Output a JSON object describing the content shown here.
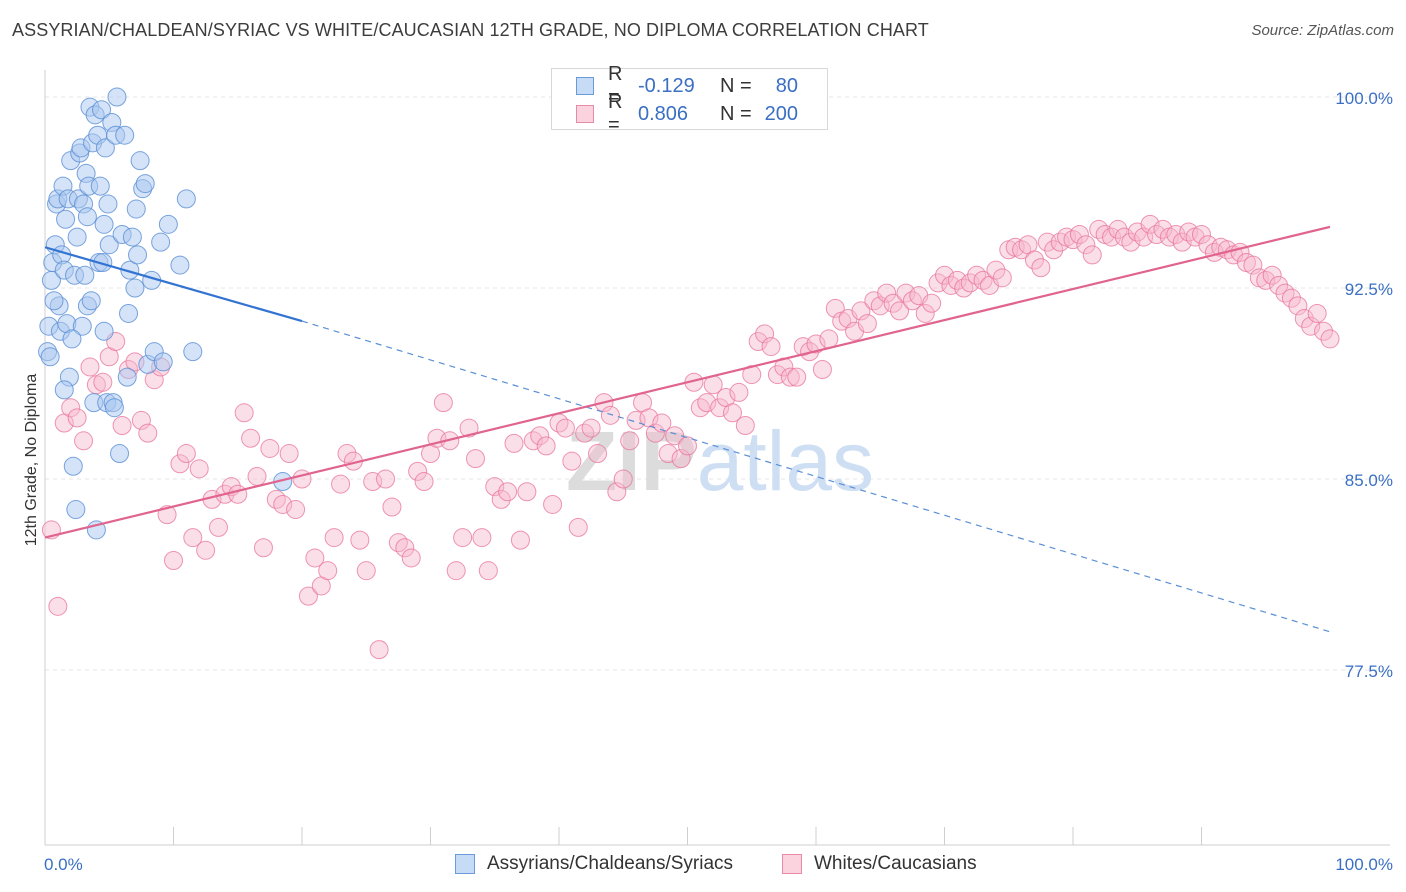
{
  "header": {
    "title": "ASSYRIAN/CHALDEAN/SYRIAC VS WHITE/CAUCASIAN 12TH GRADE, NO DIPLOMA CORRELATION CHART",
    "source": "Source: ZipAtlas.com"
  },
  "watermark": "ZIPatlas",
  "legend": {
    "rows": [
      {
        "r_label": "R =",
        "r_value": "-0.129",
        "n_label": "N =",
        "n_value": "80",
        "color": "#a9c8f0",
        "border": "#6a9ad8"
      },
      {
        "r_label": "R =",
        "r_value": "0.806",
        "n_label": "N =",
        "n_value": "200",
        "color": "#f7b9cb",
        "border": "#e68aa6"
      }
    ],
    "bottom": [
      {
        "label": "Assyrians/Chaldeans/Syriacs",
        "color": "#a9c8f0",
        "border": "#6a9ad8"
      },
      {
        "label": "Whites/Caucasians",
        "color": "#f7b9cb",
        "border": "#e68aa6"
      }
    ]
  },
  "chart_data": {
    "type": "scatter",
    "ylabel": "12th Grade, No Diploma",
    "xlabel": "",
    "xlim": [
      0,
      100
    ],
    "ylim": [
      70.0,
      101.5
    ],
    "x_tick_labels": [
      "0.0%",
      "100.0%"
    ],
    "y_ticks": [
      100.0,
      92.5,
      85.0,
      77.5
    ],
    "y_tick_labels": [
      "100.0%",
      "92.5%",
      "85.0%",
      "77.5%"
    ],
    "grid": true,
    "colors": {
      "blue": "#5a8fd6",
      "blue_fill": "#a9c8f0",
      "pink": "#e8739a",
      "pink_fill": "#f7b9cb",
      "tick_label": "#3a6fc4"
    },
    "series": [
      {
        "name": "Assyrians/Chaldeans/Syriacs",
        "trend": {
          "x": [
            0,
            20
          ],
          "y": [
            94.1,
            91.2
          ],
          "dashed_to": [
            100,
            79.0
          ]
        },
        "points": [
          [
            0.2,
            90.0
          ],
          [
            0.3,
            91.0
          ],
          [
            0.5,
            92.8
          ],
          [
            0.6,
            93.5
          ],
          [
            0.8,
            94.2
          ],
          [
            0.9,
            95.8
          ],
          [
            1.0,
            96.0
          ],
          [
            1.1,
            91.8
          ],
          [
            1.2,
            90.8
          ],
          [
            1.3,
            93.8
          ],
          [
            1.4,
            96.5
          ],
          [
            1.5,
            93.2
          ],
          [
            1.6,
            95.2
          ],
          [
            1.7,
            91.1
          ],
          [
            1.8,
            96.0
          ],
          [
            1.9,
            89.0
          ],
          [
            2.0,
            97.5
          ],
          [
            2.2,
            85.5
          ],
          [
            2.3,
            93.0
          ],
          [
            2.4,
            83.8
          ],
          [
            2.5,
            94.5
          ],
          [
            2.6,
            96.0
          ],
          [
            2.7,
            97.8
          ],
          [
            2.8,
            98.0
          ],
          [
            2.9,
            91.0
          ],
          [
            3.0,
            95.8
          ],
          [
            3.1,
            93.0
          ],
          [
            3.2,
            97.0
          ],
          [
            3.3,
            91.8
          ],
          [
            3.4,
            96.5
          ],
          [
            3.5,
            99.6
          ],
          [
            3.6,
            92.0
          ],
          [
            3.7,
            98.2
          ],
          [
            3.8,
            88.0
          ],
          [
            3.9,
            99.3
          ],
          [
            4.0,
            83.0
          ],
          [
            4.1,
            98.5
          ],
          [
            4.2,
            93.5
          ],
          [
            4.3,
            96.5
          ],
          [
            4.4,
            99.5
          ],
          [
            4.5,
            93.5
          ],
          [
            4.6,
            95.0
          ],
          [
            4.7,
            98.0
          ],
          [
            4.8,
            88.0
          ],
          [
            4.9,
            95.8
          ],
          [
            5.0,
            94.2
          ],
          [
            5.2,
            99.0
          ],
          [
            5.3,
            88.0
          ],
          [
            5.5,
            98.5
          ],
          [
            5.6,
            100.0
          ],
          [
            5.8,
            86.0
          ],
          [
            6.0,
            94.6
          ],
          [
            6.2,
            98.5
          ],
          [
            6.4,
            89.0
          ],
          [
            6.6,
            93.2
          ],
          [
            6.8,
            94.5
          ],
          [
            7.0,
            92.5
          ],
          [
            7.2,
            93.8
          ],
          [
            7.4,
            97.5
          ],
          [
            7.6,
            96.4
          ],
          [
            7.8,
            96.6
          ],
          [
            8.0,
            89.5
          ],
          [
            8.5,
            90.0
          ],
          [
            9.0,
            94.3
          ],
          [
            9.2,
            89.6
          ],
          [
            9.6,
            95.0
          ],
          [
            10.5,
            93.4
          ],
          [
            11.0,
            96.0
          ],
          [
            11.5,
            90.0
          ],
          [
            18.5,
            84.9
          ],
          [
            0.4,
            89.8
          ],
          [
            0.7,
            92.0
          ],
          [
            1.5,
            88.5
          ],
          [
            2.1,
            90.5
          ],
          [
            3.3,
            95.3
          ],
          [
            4.6,
            90.8
          ],
          [
            5.4,
            87.8
          ],
          [
            6.5,
            91.5
          ],
          [
            7.1,
            95.6
          ],
          [
            8.3,
            92.8
          ]
        ]
      },
      {
        "name": "Whites/Caucasians",
        "trend": {
          "x": [
            0,
            100
          ],
          "y": [
            82.7,
            94.9
          ]
        },
        "points": [
          [
            0.5,
            83.0
          ],
          [
            1.0,
            80.0
          ],
          [
            1.5,
            87.2
          ],
          [
            2.0,
            87.8
          ],
          [
            2.5,
            87.4
          ],
          [
            3.0,
            86.5
          ],
          [
            3.5,
            89.4
          ],
          [
            4.0,
            88.7
          ],
          [
            4.5,
            88.8
          ],
          [
            5.0,
            89.8
          ],
          [
            5.5,
            90.4
          ],
          [
            6.0,
            87.1
          ],
          [
            6.5,
            89.3
          ],
          [
            7.0,
            89.6
          ],
          [
            7.5,
            87.3
          ],
          [
            8.0,
            86.8
          ],
          [
            8.5,
            88.9
          ],
          [
            9.0,
            89.4
          ],
          [
            9.5,
            83.6
          ],
          [
            10.0,
            81.8
          ],
          [
            10.5,
            85.6
          ],
          [
            11.0,
            86.0
          ],
          [
            11.5,
            82.7
          ],
          [
            12.0,
            85.4
          ],
          [
            12.5,
            82.2
          ],
          [
            13.0,
            84.2
          ],
          [
            13.5,
            83.1
          ],
          [
            14.0,
            84.4
          ],
          [
            14.5,
            84.7
          ],
          [
            15.0,
            84.4
          ],
          [
            15.5,
            87.6
          ],
          [
            16.0,
            86.6
          ],
          [
            16.5,
            85.1
          ],
          [
            17.0,
            82.3
          ],
          [
            17.5,
            86.2
          ],
          [
            18.0,
            84.2
          ],
          [
            18.5,
            84.0
          ],
          [
            19.0,
            86.0
          ],
          [
            19.5,
            83.8
          ],
          [
            20.0,
            85.0
          ],
          [
            20.5,
            80.4
          ],
          [
            21.0,
            81.9
          ],
          [
            21.5,
            80.8
          ],
          [
            22.0,
            81.4
          ],
          [
            22.5,
            82.7
          ],
          [
            23.0,
            84.8
          ],
          [
            23.5,
            86.0
          ],
          [
            24.0,
            85.7
          ],
          [
            24.5,
            82.6
          ],
          [
            25.0,
            81.4
          ],
          [
            25.5,
            84.9
          ],
          [
            26.0,
            78.3
          ],
          [
            26.5,
            85.0
          ],
          [
            27.0,
            83.9
          ],
          [
            27.5,
            82.5
          ],
          [
            28.0,
            82.3
          ],
          [
            28.5,
            81.9
          ],
          [
            29.0,
            85.3
          ],
          [
            29.5,
            84.9
          ],
          [
            30.0,
            86.0
          ],
          [
            30.5,
            86.6
          ],
          [
            31.0,
            88.0
          ],
          [
            31.5,
            86.5
          ],
          [
            32.0,
            81.4
          ],
          [
            32.5,
            82.7
          ],
          [
            33.0,
            87.0
          ],
          [
            33.5,
            85.8
          ],
          [
            34.0,
            82.7
          ],
          [
            34.5,
            81.4
          ],
          [
            35.0,
            84.7
          ],
          [
            35.5,
            84.2
          ],
          [
            36.0,
            84.5
          ],
          [
            36.5,
            86.4
          ],
          [
            37.0,
            82.6
          ],
          [
            37.5,
            84.5
          ],
          [
            38.0,
            86.5
          ],
          [
            38.5,
            86.7
          ],
          [
            39.0,
            86.3
          ],
          [
            39.5,
            84.0
          ],
          [
            40.0,
            87.2
          ],
          [
            40.5,
            87.0
          ],
          [
            41.0,
            85.7
          ],
          [
            41.5,
            83.1
          ],
          [
            42.0,
            86.8
          ],
          [
            42.5,
            87.0
          ],
          [
            43.0,
            86.0
          ],
          [
            43.5,
            88.0
          ],
          [
            44.0,
            87.5
          ],
          [
            44.5,
            84.5
          ],
          [
            45.0,
            85.0
          ],
          [
            45.5,
            86.5
          ],
          [
            46.0,
            87.3
          ],
          [
            46.5,
            88.0
          ],
          [
            47.0,
            87.4
          ],
          [
            47.5,
            86.8
          ],
          [
            48.0,
            87.2
          ],
          [
            48.5,
            86.0
          ],
          [
            49.0,
            86.7
          ],
          [
            49.5,
            85.8
          ],
          [
            50.0,
            86.3
          ],
          [
            50.5,
            88.8
          ],
          [
            51.0,
            87.8
          ],
          [
            51.5,
            88.0
          ],
          [
            52.0,
            88.7
          ],
          [
            52.5,
            87.8
          ],
          [
            53.0,
            88.2
          ],
          [
            53.5,
            87.6
          ],
          [
            54.0,
            88.4
          ],
          [
            54.5,
            87.1
          ],
          [
            55.0,
            89.1
          ],
          [
            55.5,
            90.4
          ],
          [
            56.0,
            90.7
          ],
          [
            56.5,
            90.2
          ],
          [
            57.0,
            89.1
          ],
          [
            57.5,
            89.4
          ],
          [
            58.0,
            89.0
          ],
          [
            58.5,
            89.0
          ],
          [
            59.0,
            90.2
          ],
          [
            59.5,
            90.0
          ],
          [
            60.0,
            90.3
          ],
          [
            60.5,
            89.3
          ],
          [
            61.0,
            90.5
          ],
          [
            61.5,
            91.7
          ],
          [
            62.0,
            91.2
          ],
          [
            62.5,
            91.3
          ],
          [
            63.0,
            90.8
          ],
          [
            63.5,
            91.6
          ],
          [
            64.0,
            91.1
          ],
          [
            64.5,
            92.0
          ],
          [
            65.0,
            91.8
          ],
          [
            65.5,
            92.3
          ],
          [
            66.0,
            91.9
          ],
          [
            66.5,
            91.6
          ],
          [
            67.0,
            92.3
          ],
          [
            67.5,
            92.0
          ],
          [
            68.0,
            92.2
          ],
          [
            68.5,
            91.5
          ],
          [
            69.0,
            91.9
          ],
          [
            69.5,
            92.7
          ],
          [
            70.0,
            93.0
          ],
          [
            70.5,
            92.6
          ],
          [
            71.0,
            92.8
          ],
          [
            71.5,
            92.5
          ],
          [
            72.0,
            92.7
          ],
          [
            72.5,
            93.0
          ],
          [
            73.0,
            92.8
          ],
          [
            73.5,
            92.6
          ],
          [
            74.0,
            93.2
          ],
          [
            74.5,
            92.9
          ],
          [
            75.0,
            94.0
          ],
          [
            75.5,
            94.1
          ],
          [
            76.0,
            94.0
          ],
          [
            76.5,
            94.2
          ],
          [
            77.0,
            93.6
          ],
          [
            77.5,
            93.3
          ],
          [
            78.0,
            94.3
          ],
          [
            78.5,
            94.0
          ],
          [
            79.0,
            94.3
          ],
          [
            79.5,
            94.5
          ],
          [
            80.0,
            94.4
          ],
          [
            80.5,
            94.6
          ],
          [
            81.0,
            94.2
          ],
          [
            81.5,
            93.8
          ],
          [
            82.0,
            94.8
          ],
          [
            82.5,
            94.6
          ],
          [
            83.0,
            94.5
          ],
          [
            83.5,
            94.8
          ],
          [
            84.0,
            94.5
          ],
          [
            84.5,
            94.3
          ],
          [
            85.0,
            94.7
          ],
          [
            85.5,
            94.5
          ],
          [
            86.0,
            95.0
          ],
          [
            86.5,
            94.6
          ],
          [
            87.0,
            94.8
          ],
          [
            87.5,
            94.5
          ],
          [
            88.0,
            94.6
          ],
          [
            88.5,
            94.3
          ],
          [
            89.0,
            94.7
          ],
          [
            89.5,
            94.5
          ],
          [
            90.0,
            94.6
          ],
          [
            90.5,
            94.2
          ],
          [
            91.0,
            93.9
          ],
          [
            91.5,
            94.1
          ],
          [
            92.0,
            94.0
          ],
          [
            92.5,
            93.8
          ],
          [
            93.0,
            93.9
          ],
          [
            93.5,
            93.5
          ],
          [
            94.0,
            93.4
          ],
          [
            94.5,
            92.9
          ],
          [
            95.0,
            92.8
          ],
          [
            95.5,
            93.0
          ],
          [
            96.0,
            92.6
          ],
          [
            96.5,
            92.3
          ],
          [
            97.0,
            92.1
          ],
          [
            97.5,
            91.8
          ],
          [
            98.0,
            91.3
          ],
          [
            98.5,
            91.0
          ],
          [
            99.0,
            91.5
          ],
          [
            99.5,
            90.8
          ],
          [
            100.0,
            90.5
          ]
        ]
      }
    ]
  }
}
